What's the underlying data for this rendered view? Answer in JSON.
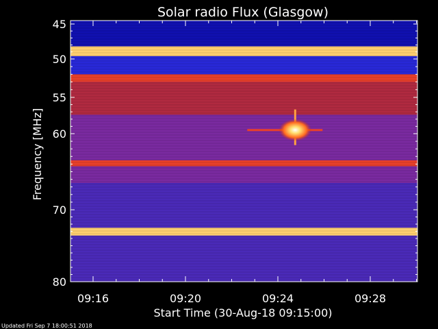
{
  "chart_data": {
    "type": "heatmap",
    "title": "Solar radio Flux (Glasgow)",
    "xlabel": "Start Time (30-Aug-18 09:15:00)",
    "ylabel": "Frequency [MHz]",
    "x_ticks": [
      "09:16",
      "09:20",
      "09:24",
      "09:28"
    ],
    "y_ticks": [
      "45",
      "50",
      "55",
      "60",
      "70",
      "80"
    ],
    "ylim": [
      45,
      80
    ],
    "xlim": [
      "09:15",
      "09:30"
    ],
    "bands": [
      {
        "f1": 45,
        "f2": 48.2,
        "level": "blue-dark"
      },
      {
        "f1": 48.2,
        "f2": 49.6,
        "level": "very-high"
      },
      {
        "f1": 49.6,
        "f2": 52,
        "level": "blue"
      },
      {
        "f1": 52,
        "f2": 53,
        "level": "high"
      },
      {
        "f1": 53,
        "f2": 57.4,
        "level": "medium-high"
      },
      {
        "f1": 57.4,
        "f2": 63.5,
        "level": "medium"
      },
      {
        "f1": 63.5,
        "f2": 64.3,
        "level": "high"
      },
      {
        "f1": 64.3,
        "f2": 66.5,
        "level": "medium"
      },
      {
        "f1": 66.5,
        "f2": 72.5,
        "level": "low"
      },
      {
        "f1": 72.5,
        "f2": 73.6,
        "level": "very-high"
      },
      {
        "f1": 73.6,
        "f2": 80,
        "level": "low"
      }
    ],
    "burst": {
      "time": "09:24:45",
      "frequency_mhz": 59.5
    }
  },
  "footer": {
    "updated": "Updated Fri Sep  7 18:00:51 2018"
  },
  "colors": {
    "background": "#000000",
    "text": "#ffffff",
    "blue-dark": "#1010b0",
    "blue": "#2828d8",
    "low": "#4a2ab8",
    "medium": "#7a2aa0",
    "medium-high": "#b02a40",
    "high": "#e8402a",
    "very-high": "#ffd070"
  }
}
